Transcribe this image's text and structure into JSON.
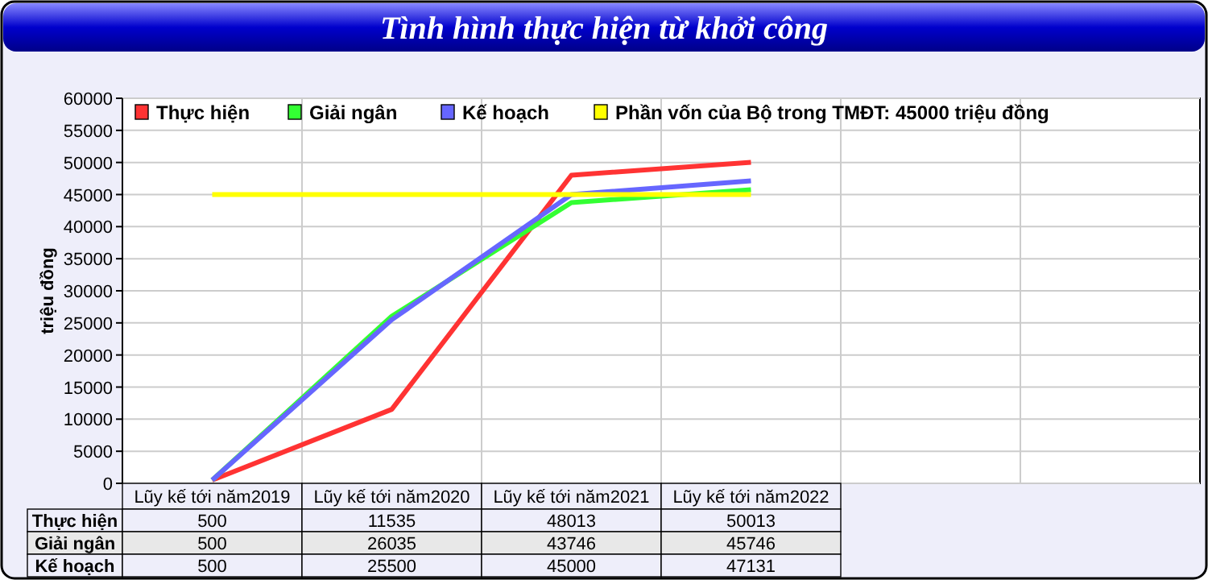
{
  "chart_data": {
    "type": "line",
    "title": "Tình hình thực hiện từ khởi công",
    "ylabel": "triệu đồng",
    "categories": [
      "Lũy kế tới năm2019",
      "Lũy kế tới năm2020",
      "Lũy kế tới năm2021",
      "Lũy kế tới năm2022",
      null,
      null
    ],
    "series": [
      {
        "name": "Thực hiện",
        "color": "#ff3333",
        "values": [
          500,
          11535,
          48013,
          50013,
          null,
          null
        ],
        "value_labels": [
          "500",
          "11535",
          "48013",
          "50013",
          null,
          null
        ]
      },
      {
        "name": "Giải ngân",
        "color": "#33ff33",
        "values": [
          500,
          26035,
          43746,
          45746,
          null,
          null
        ],
        "value_labels": [
          "500",
          "26035",
          "43746",
          "45746",
          null,
          null
        ]
      },
      {
        "name": "Kế hoạch",
        "color": "#6666ff",
        "values": [
          500,
          25500,
          45000,
          47131,
          null,
          null
        ],
        "value_labels": [
          "500",
          "25500",
          "45000",
          "47131",
          null,
          null
        ]
      },
      {
        "name": "Phần vốn của Bộ trong TMĐT: 45000 triệu đồng",
        "color": "#ffff00",
        "values": [
          45000,
          45000,
          45000,
          45000,
          null,
          null
        ]
      }
    ],
    "ylim": [
      0,
      60000
    ],
    "yticks": [
      0,
      5000,
      10000,
      15000,
      20000,
      25000,
      30000,
      35000,
      40000,
      45000,
      50000,
      55000,
      60000
    ],
    "grid": true,
    "legend": "top left",
    "marker": "none",
    "line_style": "solid"
  }
}
